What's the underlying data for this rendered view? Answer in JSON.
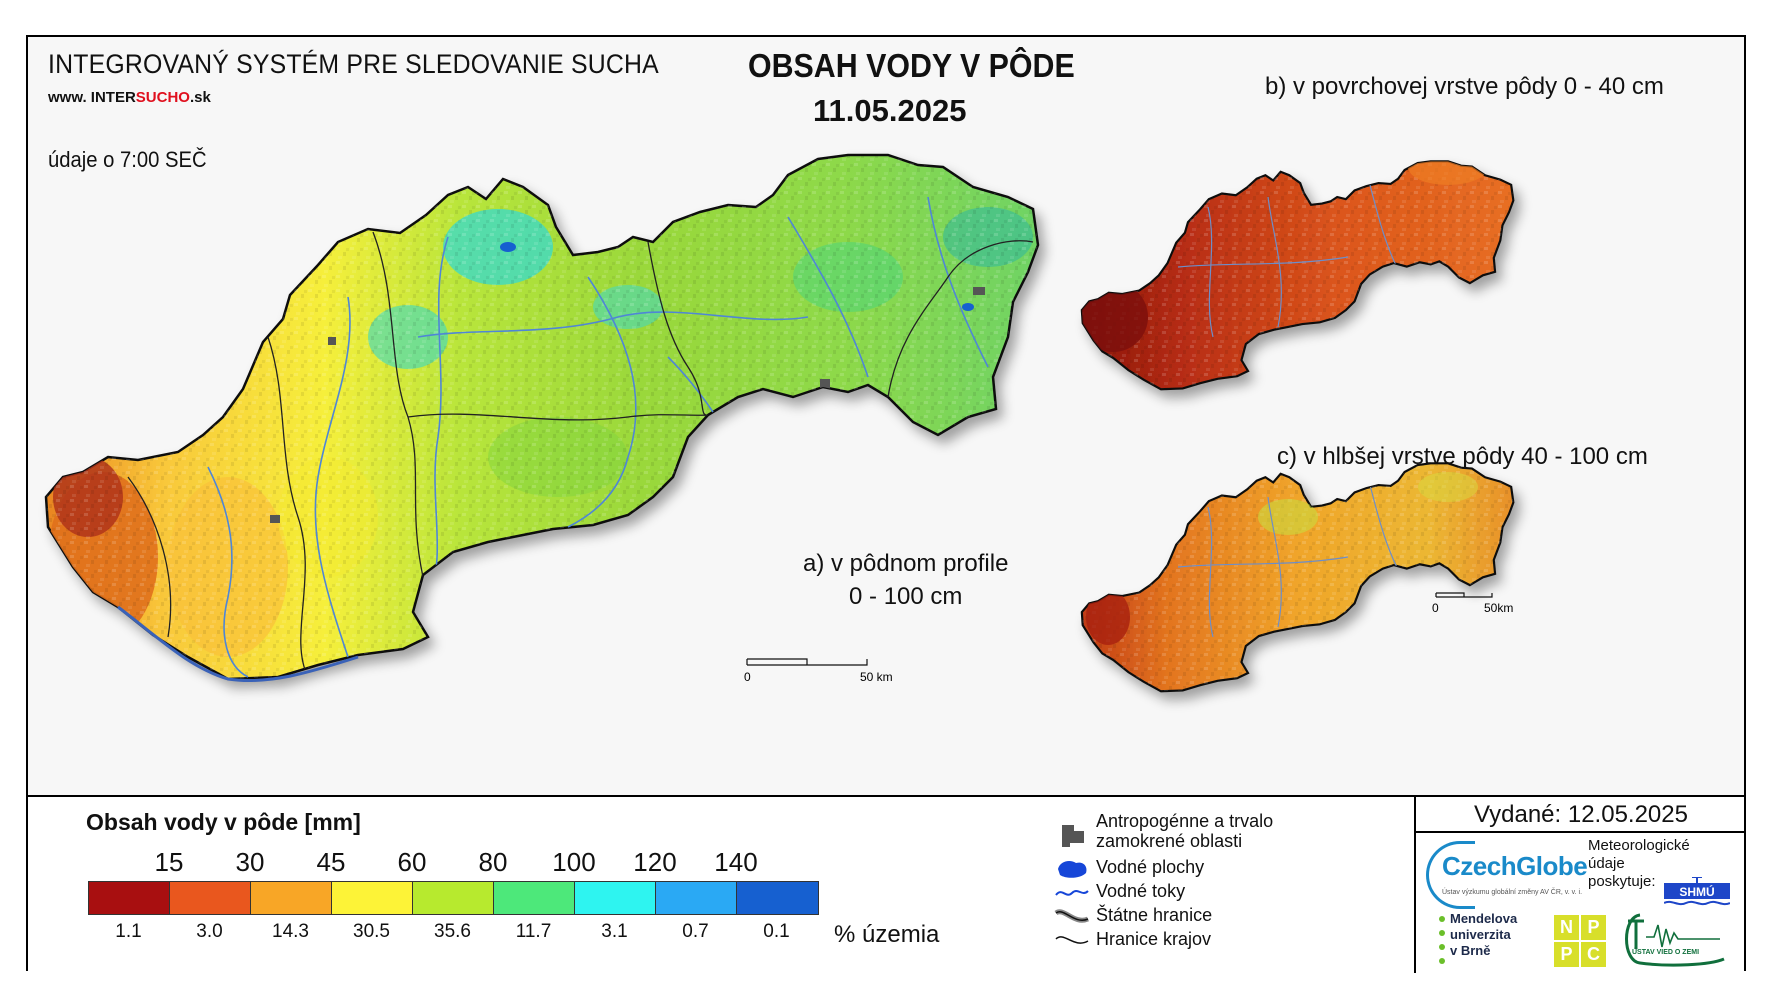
{
  "header": {
    "system_title": "INTEGROVANÝ SYSTÉM PRE SLEDOVANIE SUCHA",
    "website_prefix": "www. INTER",
    "website_accent": "SUCHO",
    "website_suffix": ".sk",
    "time_info": "údaje o 7:00 SEČ",
    "main_title": "OBSAH VODY V PÔDE",
    "date": "11.05.2025"
  },
  "maps": {
    "main_label_line1": "a) v pôdnom profile",
    "main_label_line2": "0 - 100 cm",
    "inset_b_label": "b) v povrchovej vrstve pôdy 0 - 40 cm",
    "inset_c_label": "c) v hlbšej vrstve pôdy 40 - 100 cm",
    "main_scale": {
      "start": "0",
      "end": "50 km"
    },
    "inset_scale": {
      "start": "0",
      "end": "50km"
    }
  },
  "legend": {
    "title": "Obsah vody v pôde  [mm]",
    "thresholds": [
      "15",
      "30",
      "45",
      "60",
      "80",
      "100",
      "120",
      "140"
    ],
    "classes": [
      {
        "color": "#a80f10",
        "percent": "1.1"
      },
      {
        "color": "#e9571e",
        "percent": "3.0"
      },
      {
        "color": "#f8a626",
        "percent": "14.3"
      },
      {
        "color": "#fdf337",
        "percent": "30.5"
      },
      {
        "color": "#b7ea2e",
        "percent": "35.6"
      },
      {
        "color": "#4de87a",
        "percent": "11.7"
      },
      {
        "color": "#2ef4f0",
        "percent": "3.1"
      },
      {
        "color": "#2aa9f4",
        "percent": "0.7"
      },
      {
        "color": "#1660d0",
        "percent": "0.1"
      }
    ],
    "percent_unit": "% územia",
    "symbols": [
      {
        "label": "Antropogénne a trvalo\nzamokrené oblasti",
        "icon": "built-up-area-icon"
      },
      {
        "label": "Vodné plochy",
        "icon": "water-body-icon"
      },
      {
        "label": "Vodné toky",
        "icon": "river-line-icon"
      },
      {
        "label": "Štátne hranice",
        "icon": "state-border-icon"
      },
      {
        "label": "Hranice krajov",
        "icon": "region-border-icon"
      }
    ]
  },
  "footer": {
    "issued": "Vydané: 12.05.2025",
    "czechglobe_a": "Czech",
    "czechglobe_b": "Globe",
    "czechglobe_sub": "Ústav výzkumu globální změny AV ČR, v. v. i.",
    "shmu_text": "Meteorologické\núdaje\nposkytuje:",
    "shmu_logo": "SHMÚ",
    "mendel": "Mendelova\nuniverzita\nv Brně",
    "npc": [
      "N",
      "P",
      "P",
      "C"
    ],
    "uvz": "ÚSTAV VIED O ZEMI"
  }
}
